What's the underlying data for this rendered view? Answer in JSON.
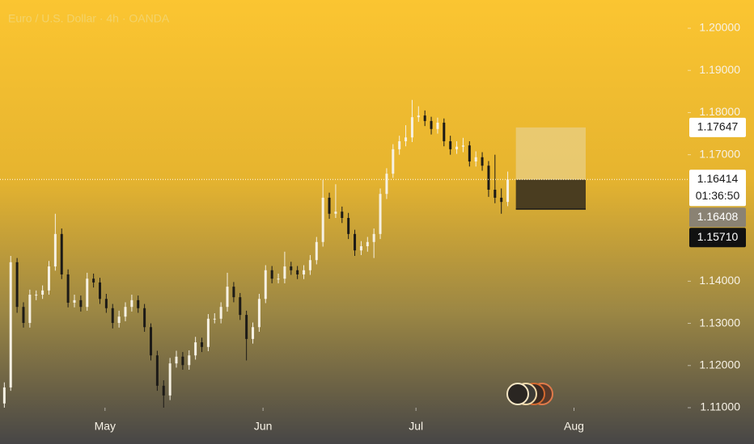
{
  "chart_data": {
    "type": "candlestick",
    "title": "Euro / U.S. Dollar · 4h · OANDA",
    "x": [
      101.25,
      102.5,
      103.75,
      105,
      106.25,
      107.5,
      108.75,
      110,
      111.25,
      112.5,
      113.75,
      115,
      116.25,
      117.5,
      118.75,
      120,
      121.25,
      122.5,
      123.75,
      125,
      126.25,
      127.5,
      128.75,
      130,
      131.25,
      132.5,
      133.75,
      135,
      136.25,
      137.5,
      138.75,
      140,
      141.25,
      142.5,
      143.75,
      145,
      146.25,
      147.5,
      148.75,
      150,
      151.25,
      152.5,
      153.75,
      155,
      156.25,
      157.5,
      158.75,
      160,
      161.25,
      162.5,
      163.75,
      165,
      166.25,
      167.5,
      168.75,
      170,
      171.25,
      172.5,
      173.75,
      175,
      176.25,
      177.5,
      178.75,
      180,
      181.25,
      182.5,
      183.75,
      185,
      186.25,
      187.5,
      188.75,
      190,
      191.25,
      192.5,
      193.75,
      195,
      196.25,
      197.5,
      198.75,
      200
    ],
    "open": [
      1.111,
      1.1148,
      1.1445,
      1.1339,
      1.1301,
      1.1368,
      1.1368,
      1.1378,
      1.1435,
      1.1512,
      1.1416,
      1.1349,
      1.1355,
      1.1339,
      1.1406,
      1.1397,
      1.1358,
      1.1336,
      1.1301,
      1.1316,
      1.1339,
      1.1355,
      1.1336,
      1.1291,
      1.1224,
      1.1152,
      1.1129,
      1.1205,
      1.1221,
      1.1201,
      1.1224,
      1.1255,
      1.1244,
      1.1311,
      1.1311,
      1.1339,
      1.1387,
      1.1362,
      1.132,
      1.1263,
      1.1291,
      1.1358,
      1.1426,
      1.1406,
      1.1406,
      1.1435,
      1.1426,
      1.1416,
      1.1426,
      1.145,
      1.1493,
      1.1598,
      1.156,
      1.1565,
      1.155,
      1.1512,
      1.1473,
      1.1483,
      1.1493,
      1.1512,
      1.1607,
      1.1655,
      1.1713,
      1.1732,
      1.1741,
      1.1789,
      1.1793,
      1.178,
      1.1761,
      1.1776,
      1.1732,
      1.1713,
      1.1719,
      1.1722,
      1.1684,
      1.1694,
      1.1674,
      1.1617,
      1.1598,
      1.1588
    ],
    "high": [
      1.116,
      1.146,
      1.1455,
      1.135,
      1.138,
      1.1378,
      1.139,
      1.1448,
      1.156,
      1.1525,
      1.1428,
      1.1368,
      1.1366,
      1.142,
      1.1418,
      1.1408,
      1.137,
      1.1346,
      1.133,
      1.135,
      1.1368,
      1.1366,
      1.1346,
      1.13,
      1.1235,
      1.1165,
      1.1218,
      1.1235,
      1.1232,
      1.1236,
      1.1268,
      1.1266,
      1.1322,
      1.1324,
      1.135,
      1.142,
      1.1398,
      1.1372,
      1.133,
      1.1302,
      1.137,
      1.1438,
      1.1436,
      1.1418,
      1.147,
      1.1446,
      1.1436,
      1.1438,
      1.1462,
      1.1505,
      1.164,
      1.161,
      1.163,
      1.1577,
      1.1562,
      1.1522,
      1.1495,
      1.1505,
      1.1525,
      1.162,
      1.1668,
      1.1725,
      1.1745,
      1.177,
      1.183,
      1.1815,
      1.1805,
      1.179,
      1.1788,
      1.1786,
      1.1745,
      1.1732,
      1.174,
      1.1732,
      1.1708,
      1.1706,
      1.1685,
      1.17,
      1.162,
      1.166
    ],
    "low": [
      1.11,
      1.114,
      1.1325,
      1.129,
      1.129,
      1.1355,
      1.1358,
      1.1368,
      1.1425,
      1.1405,
      1.1338,
      1.1338,
      1.1328,
      1.133,
      1.1385,
      1.1346,
      1.1325,
      1.1288,
      1.129,
      1.1305,
      1.1328,
      1.1325,
      1.128,
      1.1212,
      1.114,
      1.11,
      1.1118,
      1.1195,
      1.119,
      1.119,
      1.1214,
      1.1232,
      1.1234,
      1.13,
      1.13,
      1.1328,
      1.135,
      1.1308,
      1.1212,
      1.1252,
      1.128,
      1.1348,
      1.1395,
      1.1395,
      1.1395,
      1.1415,
      1.1405,
      1.1405,
      1.1415,
      1.144,
      1.1482,
      1.1548,
      1.155,
      1.1538,
      1.15,
      1.146,
      1.1462,
      1.147,
      1.1455,
      1.15,
      1.1595,
      1.1645,
      1.17,
      1.172,
      1.173,
      1.1778,
      1.1768,
      1.1748,
      1.175,
      1.172,
      1.17,
      1.1702,
      1.1706,
      1.1672,
      1.1672,
      1.1662,
      1.16,
      1.1585,
      1.156,
      1.1578
    ],
    "close": [
      1.1148,
      1.1445,
      1.1339,
      1.1301,
      1.1368,
      1.1368,
      1.1378,
      1.1435,
      1.1512,
      1.1416,
      1.1349,
      1.1355,
      1.1339,
      1.1406,
      1.1397,
      1.1358,
      1.1336,
      1.1301,
      1.1316,
      1.1339,
      1.1355,
      1.1336,
      1.1291,
      1.1224,
      1.1152,
      1.1129,
      1.1205,
      1.1221,
      1.1201,
      1.1224,
      1.1255,
      1.1244,
      1.1311,
      1.1311,
      1.1339,
      1.1387,
      1.1362,
      1.132,
      1.1263,
      1.1291,
      1.1358,
      1.1426,
      1.1406,
      1.1406,
      1.1435,
      1.1426,
      1.1416,
      1.1426,
      1.145,
      1.1493,
      1.1598,
      1.156,
      1.1565,
      1.155,
      1.1512,
      1.1473,
      1.1483,
      1.1493,
      1.1512,
      1.1607,
      1.1655,
      1.1713,
      1.1732,
      1.1741,
      1.1789,
      1.1793,
      1.178,
      1.1761,
      1.1776,
      1.1732,
      1.1713,
      1.1719,
      1.1722,
      1.1684,
      1.1694,
      1.1674,
      1.1617,
      1.1598,
      1.1588,
      1.16414
    ],
    "up_color": "#f6f1e4",
    "down_color": "#1c1a17",
    "xlim": [
      100.4,
      235.3
    ],
    "ylim": [
      1.11,
      1.2067
    ],
    "xticks": [
      {
        "value": 121,
        "label": "May"
      },
      {
        "value": 152,
        "label": "Jun"
      },
      {
        "value": 182,
        "label": "Jul"
      },
      {
        "value": 213,
        "label": "Aug"
      }
    ],
    "yticks": [
      {
        "value": 1.2,
        "label": "1.20000"
      },
      {
        "value": 1.19,
        "label": "1.19000"
      },
      {
        "value": 1.18,
        "label": "1.18000"
      },
      {
        "value": 1.17,
        "label": "1.17000"
      },
      {
        "value": 1.14,
        "label": "1.14000"
      },
      {
        "value": 1.13,
        "label": "1.13000"
      },
      {
        "value": 1.12,
        "label": "1.12000"
      },
      {
        "value": 1.11,
        "label": "1.11000"
      }
    ],
    "current_price": {
      "value": 1.16414,
      "label": "1.16414"
    },
    "countdown": "01:36:50",
    "position": {
      "x_start": 201.6,
      "x_end": 215.3,
      "target": {
        "value": 1.17647,
        "label": "1.17647"
      },
      "entry": {
        "value": 1.16408,
        "label": "1.16408"
      },
      "stop": {
        "value": 1.1571,
        "label": "1.15710"
      }
    }
  }
}
